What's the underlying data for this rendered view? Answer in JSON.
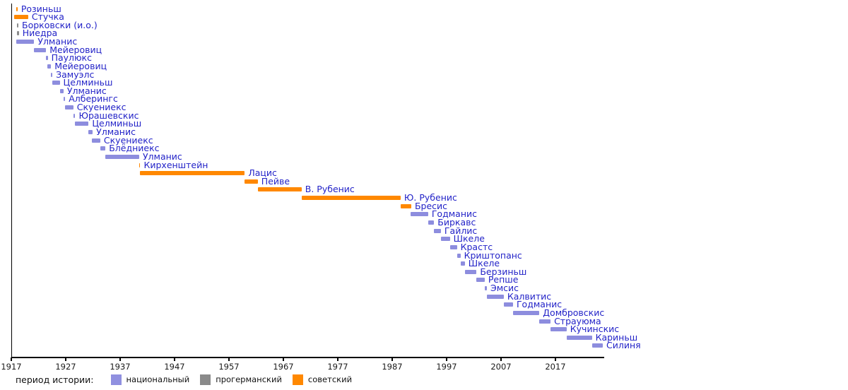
{
  "chart_data": {
    "type": "timeline-gantt",
    "description": "Timeline of heads of government of Latvia by period of history",
    "x_axis": {
      "tick_years": [
        1917,
        1927,
        1937,
        1947,
        1957,
        1967,
        1977,
        1987,
        1997,
        2007,
        2017
      ],
      "start_year": 1917,
      "end_year": 2025.8,
      "grid": false
    },
    "period_colors": {
      "national": "#8d8dde",
      "progerman": "#8c8c8c",
      "soviet": "#ff8800"
    },
    "label_text_color": "#2323c8",
    "rows": [
      {
        "name": "Розиньш",
        "start": 1917.85,
        "end": 1918.15,
        "period": "soviet"
      },
      {
        "name": "Стучка",
        "start": 1917.5,
        "end": 1920.1,
        "period": "soviet"
      },
      {
        "name": "Борковски (и.о.)",
        "start": 1918.0,
        "end": 1918.3,
        "period": "progerman"
      },
      {
        "name": "Ниедра",
        "start": 1918.1,
        "end": 1918.4,
        "period": "progerman"
      },
      {
        "name": "Улманис",
        "start": 1917.9,
        "end": 1921.2,
        "period": "national"
      },
      {
        "name": "Мейеровиц",
        "start": 1921.2,
        "end": 1923.4,
        "period": "national"
      },
      {
        "name": "Паулюкс",
        "start": 1923.4,
        "end": 1923.7,
        "period": "national"
      },
      {
        "name": "Мейеровиц",
        "start": 1923.6,
        "end": 1924.3,
        "period": "national"
      },
      {
        "name": "Замуэлс",
        "start": 1924.25,
        "end": 1924.55,
        "period": "national"
      },
      {
        "name": "Целминьш",
        "start": 1924.5,
        "end": 1925.9,
        "period": "national"
      },
      {
        "name": "Улманис",
        "start": 1925.9,
        "end": 1926.6,
        "period": "national"
      },
      {
        "name": "Алберингс",
        "start": 1926.55,
        "end": 1926.9,
        "period": "national"
      },
      {
        "name": "Скуениекс",
        "start": 1926.85,
        "end": 1928.4,
        "period": "national"
      },
      {
        "name": "Юрашевскис",
        "start": 1928.4,
        "end": 1928.75,
        "period": "national"
      },
      {
        "name": "Целминьш",
        "start": 1928.7,
        "end": 1931.2,
        "period": "national"
      },
      {
        "name": "Улманис",
        "start": 1931.2,
        "end": 1931.95,
        "period": "national"
      },
      {
        "name": "Скуениекс",
        "start": 1931.8,
        "end": 1933.35,
        "period": "national"
      },
      {
        "name": "Блёдниекс",
        "start": 1933.3,
        "end": 1934.3,
        "period": "national"
      },
      {
        "name": "Улманис",
        "start": 1934.25,
        "end": 1940.5,
        "period": "national"
      },
      {
        "name": "Кирхенштейн",
        "start": 1940.45,
        "end": 1940.7,
        "period": "soviet"
      },
      {
        "name": "Лацис",
        "start": 1940.65,
        "end": 1959.9,
        "period": "soviet"
      },
      {
        "name": "Пейве",
        "start": 1959.9,
        "end": 1962.3,
        "period": "soviet"
      },
      {
        "name": "В. Рубенис",
        "start": 1962.3,
        "end": 1970.35,
        "period": "soviet"
      },
      {
        "name": "Ю. Рубенис",
        "start": 1970.35,
        "end": 1988.55,
        "period": "soviet"
      },
      {
        "name": "Бресис",
        "start": 1988.55,
        "end": 1990.5,
        "period": "soviet"
      },
      {
        "name": "Годманис",
        "start": 1990.4,
        "end": 1993.6,
        "period": "national"
      },
      {
        "name": "Биркавс",
        "start": 1993.6,
        "end": 1994.7,
        "period": "national"
      },
      {
        "name": "Гайлис",
        "start": 1994.7,
        "end": 1995.95,
        "period": "national"
      },
      {
        "name": "Шкеле",
        "start": 1995.95,
        "end": 1997.6,
        "period": "national"
      },
      {
        "name": "Крастс",
        "start": 1997.6,
        "end": 1998.9,
        "period": "national"
      },
      {
        "name": "Криштопанс",
        "start": 1998.9,
        "end": 1999.55,
        "period": "national"
      },
      {
        "name": "Шкеле",
        "start": 1999.55,
        "end": 2000.35,
        "period": "national"
      },
      {
        "name": "Берзиньш",
        "start": 2000.35,
        "end": 2002.5,
        "period": "national"
      },
      {
        "name": "Репше",
        "start": 2002.5,
        "end": 2004.0,
        "period": "national"
      },
      {
        "name": "Эмсис",
        "start": 2004.0,
        "end": 2004.4,
        "period": "national"
      },
      {
        "name": "Калвитис",
        "start": 2004.4,
        "end": 2007.5,
        "period": "national"
      },
      {
        "name": "Годманис",
        "start": 2007.5,
        "end": 2009.2,
        "period": "national"
      },
      {
        "name": "Домбровскис",
        "start": 2009.2,
        "end": 2014.05,
        "period": "national"
      },
      {
        "name": "Страуюма",
        "start": 2014.05,
        "end": 2016.1,
        "period": "national"
      },
      {
        "name": "Кучинскис",
        "start": 2016.1,
        "end": 2019.05,
        "period": "national"
      },
      {
        "name": "Кариньш",
        "start": 2019.05,
        "end": 2023.7,
        "period": "national"
      },
      {
        "name": "Силиня",
        "start": 2023.7,
        "end": 2025.7,
        "period": "national"
      }
    ],
    "legend": {
      "title": "период истории:",
      "position": "bottom-left",
      "items": [
        {
          "label": "национальный",
          "color": "#9090e0"
        },
        {
          "label": "прогерманский",
          "color": "#8a8a8a"
        },
        {
          "label": "советский",
          "color": "#ff8800"
        }
      ]
    }
  }
}
